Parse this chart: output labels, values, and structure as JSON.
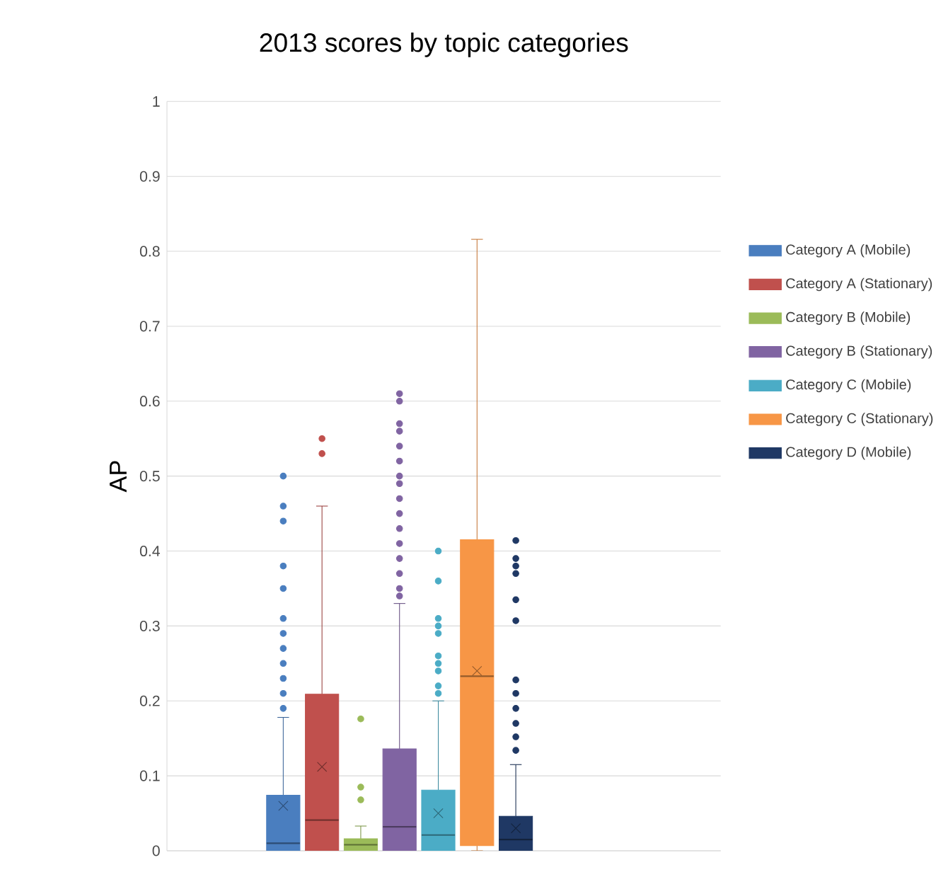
{
  "chart_data": {
    "type": "box",
    "title": "2013 scores by topic categories",
    "ylabel": "AP",
    "categories": [
      null
    ],
    "ylim": [
      0,
      1
    ],
    "yticks": [
      0,
      0.1,
      0.2,
      0.3,
      0.4,
      0.5,
      0.6,
      0.7,
      0.8,
      0.9,
      1
    ],
    "grid": "y",
    "legend": "right",
    "series": [
      {
        "name": "Category A (Mobile)",
        "color": "#4a7ebf",
        "boxes": [
          {
            "low": 0,
            "q1": 0,
            "median": 0.01,
            "q3": 0.074,
            "high": 0.178,
            "mean": 0.06,
            "outliers": [
              0.19,
              0.21,
              0.23,
              0.25,
              0.27,
              0.29,
              0.31,
              0.35,
              0.38,
              0.44,
              0.46,
              0.5
            ]
          }
        ]
      },
      {
        "name": "Category A (Stationary)",
        "color": "#c0504d",
        "boxes": [
          {
            "low": 0,
            "q1": 0,
            "median": 0.041,
            "q3": 0.209,
            "high": 0.46,
            "mean": 0.112,
            "outliers": [
              0.53,
              0.55
            ]
          }
        ]
      },
      {
        "name": "Category B (Mobile)",
        "color": "#9bbb59",
        "boxes": [
          {
            "low": 0,
            "q1": 0,
            "median": 0.008,
            "q3": 0.016,
            "high": 0.033,
            "outliers": [
              0.068,
              0.085,
              0.176
            ]
          }
        ]
      },
      {
        "name": "Category B (Stationary)",
        "color": "#8064a2",
        "boxes": [
          {
            "low": 0,
            "q1": 0,
            "median": 0.032,
            "q3": 0.136,
            "high": 0.33,
            "outliers": [
              0.34,
              0.35,
              0.37,
              0.39,
              0.41,
              0.43,
              0.45,
              0.47,
              0.49,
              0.5,
              0.52,
              0.54,
              0.56,
              0.57,
              0.6,
              0.61
            ]
          }
        ]
      },
      {
        "name": "Category C (Mobile)",
        "color": "#4bacc6",
        "boxes": [
          {
            "low": 0,
            "q1": 0,
            "median": 0.021,
            "q3": 0.081,
            "high": 0.2,
            "mean": 0.05,
            "outliers": [
              0.21,
              0.22,
              0.24,
              0.25,
              0.26,
              0.29,
              0.3,
              0.31,
              0.36,
              0.4
            ]
          }
        ]
      },
      {
        "name": "Category C (Stationary)",
        "color": "#f79646",
        "boxes": [
          {
            "low": 0,
            "q1": 0.007,
            "median": 0.233,
            "q3": 0.415,
            "high": 0.816,
            "mean": 0.24
          }
        ]
      },
      {
        "name": "Category D (Mobile)",
        "color": "#1f3864",
        "boxes": [
          {
            "low": 0,
            "q1": 0,
            "median": 0.015,
            "q3": 0.046,
            "high": 0.115,
            "mean": 0.03,
            "outliers": [
              0.134,
              0.152,
              0.17,
              0.19,
              0.21,
              0.228,
              0.307,
              0.335,
              0.37,
              0.38,
              0.39,
              0.414
            ]
          }
        ]
      }
    ]
  }
}
